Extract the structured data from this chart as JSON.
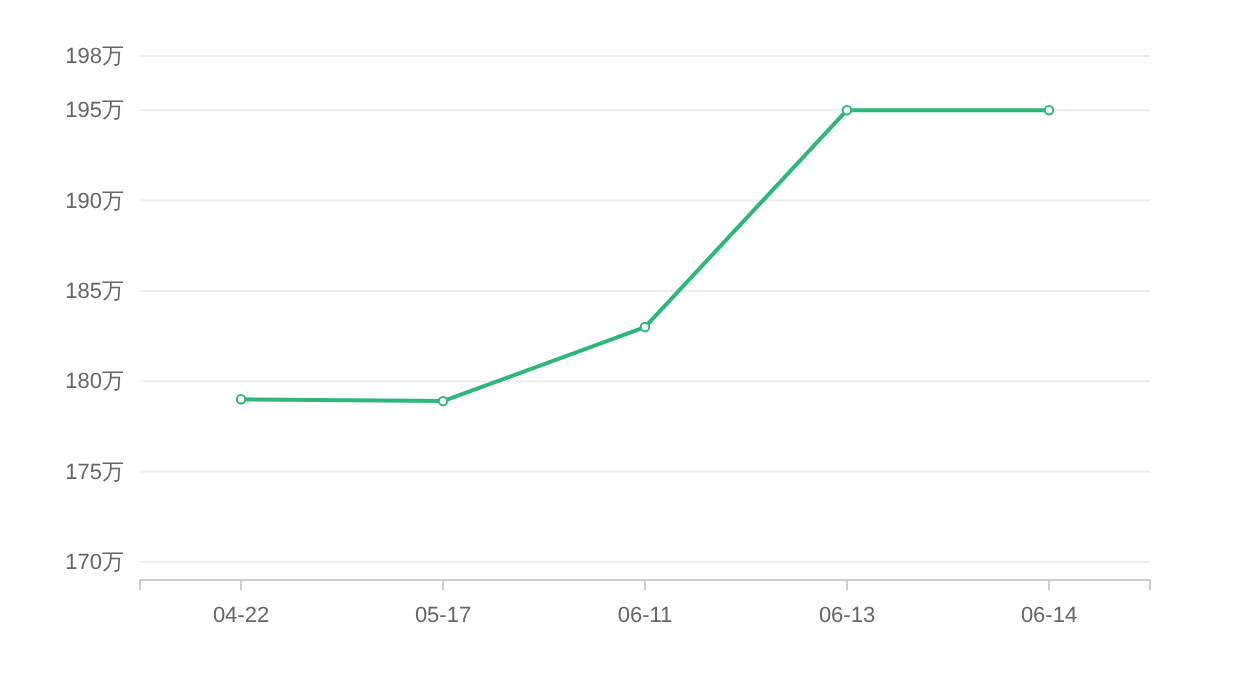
{
  "chart_data": {
    "type": "line",
    "categories": [
      "04-22",
      "05-17",
      "06-11",
      "06-13",
      "06-14"
    ],
    "series": [
      {
        "color": "#2db87a",
        "values": [
          179,
          178.9,
          183,
          195,
          195
        ]
      }
    ],
    "ylim": [
      169,
      198
    ],
    "yticks": [
      {
        "value": 170,
        "label": "170万"
      },
      {
        "value": 175,
        "label": "175万"
      },
      {
        "value": 180,
        "label": "180万"
      },
      {
        "value": 185,
        "label": "185万"
      },
      {
        "value": 190,
        "label": "190万"
      },
      {
        "value": 195,
        "label": "195万"
      },
      {
        "value": 198,
        "label": "198万"
      }
    ],
    "grid": "y",
    "marker": "circle",
    "line_style": "solid"
  }
}
